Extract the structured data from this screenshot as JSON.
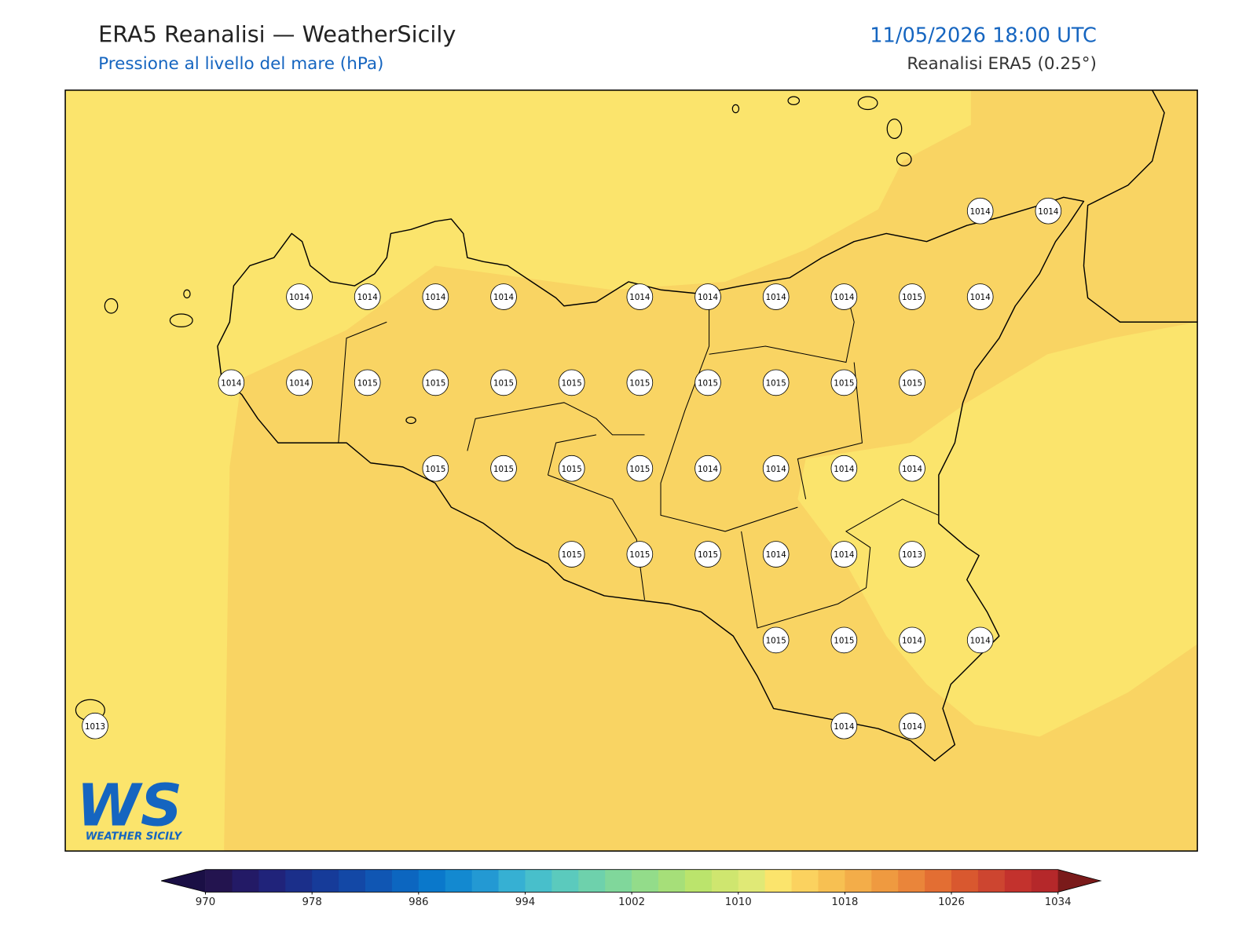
{
  "header": {
    "title": "ERA5 Reanalisi — WeatherSicily",
    "subtitle": "Pressione al livello del mare (hPa)",
    "datetime": "11/05/2026 18:00 UTC",
    "source": "Reanalisi ERA5 (0.25°)"
  },
  "stations": [
    1014,
    1014,
    1014,
    1014,
    1014,
    1014,
    1014,
    1014,
    1014,
    1014,
    1015,
    1014,
    1014,
    1014,
    1015,
    1015,
    1015,
    1015,
    1015,
    1015,
    1015,
    1015,
    1015,
    1015,
    1015,
    1015,
    1015,
    1014,
    1014,
    1014,
    1014,
    1015,
    1015,
    1015,
    1014,
    1014,
    1013,
    1015,
    1015,
    1014,
    1014,
    1013,
    1014,
    1014
  ],
  "colorbar": {
    "range": [
      970,
      1034
    ],
    "step": 2,
    "ticks": [
      970,
      978,
      986,
      994,
      1002,
      1010,
      1018,
      1026,
      1034
    ],
    "colors": [
      "#23144f",
      "#231a66",
      "#20237a",
      "#1b2f8a",
      "#163b99",
      "#1348a6",
      "#1056b3",
      "#0c66c0",
      "#0a78cb",
      "#1389d0",
      "#2399d3",
      "#36b0d3",
      "#48bfcb",
      "#5bcabd",
      "#6ed1ac",
      "#80d79b",
      "#93dc8a",
      "#a6df79",
      "#bbe46c",
      "#cfe66f",
      "#e0e976",
      "#fbe46c",
      "#fbd25f",
      "#f7c052",
      "#f3ad49",
      "#ef9a40",
      "#ea853a",
      "#e36e33",
      "#d9582f",
      "#cd4530",
      "#c3322d",
      "#b5282a"
    ],
    "under": "#1a0f45",
    "over": "#7a1a1a"
  },
  "logo": {
    "mark": "WS",
    "name": "WEATHER SICILY"
  }
}
